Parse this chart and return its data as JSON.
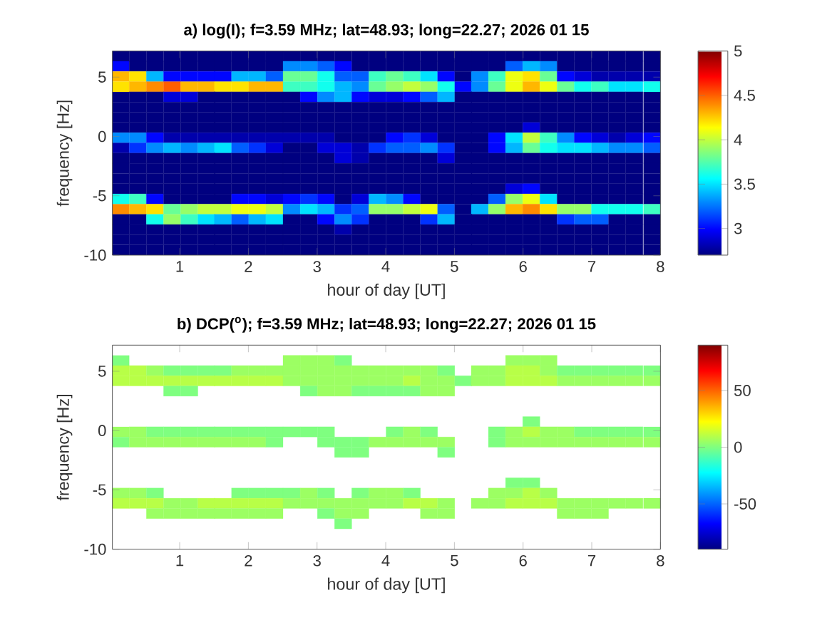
{
  "chart_data": [
    {
      "type": "scatter",
      "marker": "square",
      "title": "a) log(I); f=3.59 MHz;  lat=48.93; long=22.27; 2026 01 15",
      "xlabel": "hour of day [UT]",
      "ylabel": "frequency [Hz]",
      "xlim": [
        0.02,
        8
      ],
      "xticks": [
        1,
        2,
        3,
        4,
        5,
        6,
        7,
        8
      ],
      "ylim": [
        -10,
        7.2
      ],
      "yticks": [
        -10,
        -5,
        0,
        5
      ],
      "clim": [
        2.7,
        5
      ],
      "cticks": [
        3,
        3.5,
        4,
        4.5,
        5
      ],
      "x": [
        0.14,
        0.39,
        0.64,
        0.89,
        1.14,
        1.39,
        1.63,
        1.88,
        2.13,
        2.38,
        2.63,
        2.88,
        3.13,
        3.38,
        3.63,
        3.88,
        4.13,
        4.38,
        4.63,
        4.88,
        5.13,
        5.37,
        5.62,
        5.87,
        6.12,
        6.37,
        6.62,
        6.87,
        7.12,
        7.37,
        7.62,
        7.88,
        0.14,
        0.39,
        0.64,
        0.89,
        1.14,
        1.39,
        1.63,
        1.88,
        2.13,
        2.38,
        2.63,
        2.88,
        3.13,
        3.38,
        3.63,
        3.88,
        4.13,
        4.38,
        4.63,
        4.88,
        5.13,
        5.37,
        5.62,
        5.87,
        6.12,
        6.37,
        6.62,
        6.87,
        7.12,
        7.37,
        7.62,
        7.88,
        0.14,
        0.39,
        0.64,
        0.89,
        1.14,
        1.39,
        1.63,
        1.88,
        2.13,
        2.38,
        2.63,
        2.88,
        3.13,
        3.38,
        3.63,
        3.88,
        4.13,
        4.38,
        4.63,
        4.88,
        5.13,
        5.37,
        5.62,
        5.87,
        6.12,
        6.37,
        6.62,
        6.87,
        7.12,
        7.37,
        7.62,
        7.88,
        0.14,
        0.39,
        0.64,
        0.89,
        1.14,
        1.39,
        1.63,
        1.88,
        2.13,
        2.38,
        2.63,
        2.88,
        3.13,
        3.38,
        3.63,
        3.88,
        4.13,
        4.38,
        4.63,
        4.88,
        5.13,
        5.37,
        5.62,
        5.87,
        6.12,
        6.37,
        6.62,
        6.87,
        7.12,
        7.37,
        7.62,
        7.88,
        0.14,
        0.39,
        0.64,
        0.89,
        1.14,
        1.39,
        1.63,
        1.88,
        2.13,
        2.38,
        2.63,
        2.88,
        3.13,
        3.38,
        3.63,
        3.88,
        4.13,
        4.38,
        4.63,
        4.88,
        5.13,
        5.37,
        5.62,
        5.87,
        6.12,
        6.37,
        6.62,
        6.87,
        7.12,
        7.37,
        7.62,
        7.88,
        0.14,
        0.39,
        0.64,
        0.89,
        1.14,
        1.39,
        1.63,
        1.88,
        2.13,
        2.38,
        2.63,
        2.88,
        3.13,
        3.38,
        3.63,
        3.88,
        4.13,
        4.38,
        4.63,
        4.88,
        5.13,
        5.37,
        5.62,
        5.87,
        6.12,
        6.37,
        6.62,
        6.87,
        7.12,
        7.37,
        7.62,
        7.88,
        0.14,
        0.39,
        0.64,
        0.89,
        1.14,
        1.39,
        1.63,
        1.88,
        2.13,
        2.38,
        2.63,
        2.88,
        3.13,
        3.38,
        3.63,
        3.88,
        4.13,
        4.38,
        4.63,
        4.88,
        5.13,
        5.37,
        5.62,
        5.87,
        6.12,
        6.37,
        6.62,
        6.87,
        7.12,
        7.37,
        7.62,
        7.88,
        0.14,
        0.39,
        0.64,
        0.89,
        1.14,
        1.39,
        1.63,
        1.88,
        2.13,
        2.38,
        2.63,
        2.88,
        3.13,
        3.38,
        3.63,
        3.88,
        4.13,
        4.38,
        4.63,
        4.88,
        5.13,
        5.37,
        5.62,
        5.87,
        6.12,
        6.37,
        6.62,
        6.87,
        7.12,
        7.37,
        7.62,
        7.88,
        0.14,
        0.39,
        0.64,
        0.89,
        1.14,
        1.39,
        1.63,
        1.88,
        2.13,
        2.38,
        2.63,
        2.88,
        3.13,
        3.38,
        3.63,
        3.88,
        4.13,
        4.38,
        4.63,
        4.88,
        5.13,
        5.37,
        5.62,
        5.87,
        6.12,
        6.37,
        6.62,
        6.87,
        7.12,
        7.37,
        7.62,
        7.88,
        0.14,
        0.39,
        0.64,
        0.89,
        1.14,
        1.39,
        1.63,
        1.88,
        2.13,
        2.38,
        2.63,
        2.88,
        3.13,
        3.38,
        3.63,
        3.88,
        4.13,
        4.38,
        4.63,
        4.88,
        5.13,
        5.37,
        5.62,
        5.87,
        6.12,
        6.37,
        6.62,
        6.87,
        7.12,
        7.37,
        7.62,
        7.88,
        0.14,
        0.39,
        0.64,
        0.89,
        1.14,
        1.39,
        1.63,
        1.88,
        2.13,
        2.38,
        2.63,
        2.88,
        3.13,
        3.38,
        3.63,
        3.88,
        4.13,
        4.38,
        4.63,
        4.88,
        5.13,
        5.37,
        5.62,
        5.87,
        6.12,
        6.37,
        6.62,
        6.87,
        7.12,
        7.37,
        7.62,
        7.88,
        0.14,
        0.39,
        0.64,
        0.89,
        1.14,
        1.39,
        1.63,
        1.88,
        2.13,
        2.38,
        2.63,
        2.88,
        3.13,
        3.38,
        3.63,
        3.88,
        4.13,
        4.38,
        4.63,
        4.88,
        5.13,
        5.37,
        5.62,
        5.87,
        6.12,
        6.37,
        6.62,
        6.87,
        7.12,
        7.37,
        7.62,
        7.88,
        0.14,
        0.39,
        0.64,
        0.89,
        1.14,
        1.39,
        1.63,
        1.88,
        2.13,
        2.38,
        2.63,
        2.88,
        3.13,
        3.38,
        3.63,
        3.88,
        4.13,
        4.38,
        4.63,
        4.88,
        5.13,
        5.37,
        5.62,
        5.87,
        6.12,
        6.37,
        6.62,
        6.87,
        7.12,
        7.37,
        7.62,
        7.88,
        0.14,
        0.39,
        0.64,
        0.89,
        1.14,
        1.39,
        1.63,
        1.88,
        2.13,
        2.38,
        2.63,
        2.88,
        3.13,
        3.38,
        3.63,
        3.88,
        4.13,
        4.38,
        4.63,
        4.88,
        5.13,
        5.37,
        5.62,
        5.87,
        6.12,
        6.37,
        6.62,
        6.87,
        7.12,
        7.37,
        7.62,
        7.88,
        0.14,
        0.39,
        0.64,
        0.89,
        1.14,
        1.39,
        1.63,
        1.88,
        2.13,
        2.38,
        2.63,
        2.88,
        3.13,
        3.38,
        3.63,
        3.88,
        4.13,
        4.38,
        4.63,
        4.88,
        5.13,
        5.37,
        5.62,
        5.87,
        6.12,
        6.37,
        6.62,
        6.87,
        7.12,
        7.37,
        7.62,
        7.88,
        0.14,
        0.39,
        0.64,
        0.89,
        1.14,
        1.39,
        1.63,
        1.88,
        2.13,
        2.38,
        2.63,
        2.88,
        3.13,
        3.38,
        3.63,
        3.88,
        4.13,
        4.38,
        4.63,
        4.88,
        5.13,
        5.37,
        5.62,
        5.87,
        6.12,
        6.37,
        6.62,
        6.87,
        7.12,
        7.37,
        7.62,
        7.88,
        0.14,
        0.39,
        0.64,
        0.89,
        1.14,
        1.39,
        1.63,
        1.88,
        2.13,
        2.38,
        2.63,
        2.88,
        3.13,
        3.38,
        3.63,
        3.88,
        4.13,
        4.38,
        4.63,
        4.88,
        5.13,
        5.37,
        5.62,
        5.87,
        6.12,
        6.37,
        6.62,
        6.87,
        7.12,
        7.37,
        7.62,
        7.88,
        0.14,
        0.39,
        0.64,
        0.89,
        1.14,
        1.39,
        1.63,
        1.88,
        2.13,
        2.38,
        2.63,
        2.88,
        3.13,
        3.38,
        3.63,
        3.88,
        4.13,
        4.38,
        4.63,
        4.88,
        5.13,
        5.37,
        5.62,
        5.87,
        6.12,
        6.37,
        6.62,
        6.87,
        7.12,
        7.37,
        7.62,
        7.88,
        0.14,
        0.39,
        0.64,
        0.89,
        1.14,
        1.39,
        1.63,
        1.88,
        2.13,
        2.38,
        2.63,
        2.88,
        3.13,
        3.38,
        3.63,
        3.88,
        4.13,
        4.38,
        4.63,
        4.88,
        5.13,
        5.37,
        5.62,
        5.87,
        6.12,
        6.37,
        6.62,
        6.87,
        7.12,
        7.37,
        7.62,
        7.88,
        0.14,
        0.39,
        0.64,
        0.89,
        1.14,
        1.39,
        1.63,
        1.88,
        2.13,
        2.38,
        2.63,
        2.88,
        3.13,
        3.38,
        3.63,
        3.88,
        4.13,
        4.38,
        4.63,
        4.88,
        5.13,
        5.37,
        5.62,
        5.87,
        6.12,
        6.37,
        6.62,
        6.87,
        7.12,
        7.37,
        7.62,
        7.88
      ],
      "values": [
        6.77,
        6.77,
        6.77,
        6.77,
        6.77,
        6.77,
        6.77,
        6.77,
        6.77,
        6.77,
        6.77,
        6.77,
        6.77,
        6.77,
        6.77,
        6.77,
        6.77,
        6.77,
        6.77,
        6.77,
        6.77,
        6.77,
        6.77,
        6.77,
        6.77,
        6.77,
        6.77,
        6.77,
        6.77,
        6.77,
        6.77,
        6.77,
        5.91,
        5.91,
        5.91,
        5.91,
        5.91,
        5.91,
        5.91,
        5.91,
        5.91,
        5.91,
        5.91,
        5.91,
        5.91,
        5.91,
        5.91,
        5.91,
        5.91,
        5.91,
        5.91,
        5.91,
        5.91,
        5.91,
        5.91,
        5.91,
        5.91,
        5.91,
        5.91,
        5.91,
        5.91,
        5.91,
        5.91,
        5.91,
        5.05,
        5.05,
        5.05,
        5.05,
        5.05,
        5.05,
        5.05,
        5.05,
        5.05,
        5.05,
        5.05,
        5.05,
        5.05,
        5.05,
        5.05,
        5.05,
        5.05,
        5.05,
        5.05,
        5.05,
        5.05,
        5.05,
        5.05,
        5.05,
        5.05,
        5.05,
        5.05,
        5.05,
        5.05,
        5.05,
        5.05,
        5.05,
        4.19,
        4.19,
        4.19,
        4.19,
        4.19,
        4.19,
        4.19,
        4.19,
        4.19,
        4.19,
        4.19,
        4.19,
        4.19,
        4.19,
        4.19,
        4.19,
        4.19,
        4.19,
        4.19,
        4.19,
        4.19,
        4.19,
        4.19,
        4.19,
        4.19,
        4.19,
        4.19,
        4.19,
        4.19,
        4.19,
        4.19,
        4.19,
        3.33,
        3.33,
        3.33,
        3.33,
        3.33,
        3.33,
        3.33,
        3.33,
        3.33,
        3.33,
        3.33,
        3.33,
        3.33,
        3.33,
        3.33,
        3.33,
        3.33,
        3.33,
        3.33,
        3.33,
        3.33,
        3.33,
        3.33,
        3.33,
        3.33,
        3.33,
        3.33,
        3.33,
        3.33,
        3.33,
        3.33,
        3.33,
        2.47,
        2.47,
        2.47,
        2.47,
        2.47,
        2.47,
        2.47,
        2.47,
        2.47,
        2.47,
        2.47,
        2.47,
        2.47,
        2.47,
        2.47,
        2.47,
        2.47,
        2.47,
        2.47,
        2.47,
        2.47,
        2.47,
        2.47,
        2.47,
        2.47,
        2.47,
        2.47,
        2.47,
        2.47,
        2.47,
        2.47,
        2.47,
        1.61,
        1.61,
        1.61,
        1.61,
        1.61,
        1.61,
        1.61,
        1.61,
        1.61,
        1.61,
        1.61,
        1.61,
        1.61,
        1.61,
        1.61,
        1.61,
        1.61,
        1.61,
        1.61,
        1.61,
        1.61,
        1.61,
        1.61,
        1.61,
        1.61,
        1.61,
        1.61,
        1.61,
        1.61,
        1.61,
        1.61,
        1.61,
        0.75,
        0.75,
        0.75,
        0.75,
        0.75,
        0.75,
        0.75,
        0.75,
        0.75,
        0.75,
        0.75,
        0.75,
        0.75,
        0.75,
        0.75,
        0.75,
        0.75,
        0.75,
        0.75,
        0.75,
        0.75,
        0.75,
        0.75,
        0.75,
        0.75,
        0.75,
        0.75,
        0.75,
        0.75,
        0.75,
        0.75,
        0.75,
        -0.11,
        -0.11,
        -0.11,
        -0.11,
        -0.11,
        -0.11,
        -0.11,
        -0.11,
        -0.11,
        -0.11,
        -0.11,
        -0.11,
        -0.11,
        -0.11,
        -0.11,
        -0.11,
        -0.11,
        -0.11,
        -0.11,
        -0.11,
        -0.11,
        -0.11,
        -0.11,
        -0.11,
        -0.11,
        -0.11,
        -0.11,
        -0.11,
        -0.11,
        -0.11,
        -0.11,
        -0.11,
        -0.97,
        -0.97,
        -0.97,
        -0.97,
        -0.97,
        -0.97,
        -0.97,
        -0.97,
        -0.97,
        -0.97,
        -0.97,
        -0.97,
        -0.97,
        -0.97,
        -0.97,
        -0.97,
        -0.97,
        -0.97,
        -0.97,
        -0.97,
        -0.97,
        -0.97,
        -0.97,
        -0.97,
        -0.97,
        -0.97,
        -0.97,
        -0.97,
        -0.97,
        -0.97,
        -0.97,
        -0.97,
        -1.83,
        -1.83,
        -1.83,
        -1.83,
        -1.83,
        -1.83,
        -1.83,
        -1.83,
        -1.83,
        -1.83,
        -1.83,
        -1.83,
        -1.83,
        -1.83,
        -1.83,
        -1.83,
        -1.83,
        -1.83,
        -1.83,
        -1.83,
        -1.83,
        -1.83,
        -1.83,
        -1.83,
        -1.83,
        -1.83,
        -1.83,
        -1.83,
        -1.83,
        -1.83,
        -1.83,
        -1.83,
        -2.69,
        -2.69,
        -2.69,
        -2.69,
        -2.69,
        -2.69,
        -2.69,
        -2.69,
        -2.69,
        -2.69,
        -2.69,
        -2.69,
        -2.69,
        -2.69,
        -2.69,
        -2.69,
        -2.69,
        -2.69,
        -2.69,
        -2.69,
        -2.69,
        -2.69,
        -2.69,
        -2.69,
        -2.69,
        -2.69,
        -2.69,
        -2.69,
        -2.69,
        -2.69,
        -2.69,
        -2.69,
        -3.55,
        -3.55,
        -3.55,
        -3.55,
        -3.55,
        -3.55,
        -3.55,
        -3.55,
        -3.55,
        -3.55,
        -3.55,
        -3.55,
        -3.55,
        -3.55,
        -3.55,
        -3.55,
        -3.55,
        -3.55,
        -3.55,
        -3.55,
        -3.55,
        -3.55,
        -3.55,
        -3.55,
        -3.55,
        -3.55,
        -3.55,
        -3.55,
        -3.55,
        -3.55,
        -3.55,
        -3.55,
        -4.41,
        -4.41,
        -4.41,
        -4.41,
        -4.41,
        -4.41,
        -4.41,
        -4.41,
        -4.41,
        -4.41,
        -4.41,
        -4.41,
        -4.41,
        -4.41,
        -4.41,
        -4.41,
        -4.41,
        -4.41,
        -4.41,
        -4.41,
        -4.41,
        -4.41,
        -4.41,
        -4.41,
        -4.41,
        -4.41,
        -4.41,
        -4.41,
        -4.41,
        -4.41,
        -4.41,
        -4.41,
        -5.27,
        -5.27,
        -5.27,
        -5.27,
        -5.27,
        -5.27,
        -5.27,
        -5.27,
        -5.27,
        -5.27,
        -5.27,
        -5.27,
        -5.27,
        -5.27,
        -5.27,
        -5.27,
        -5.27,
        -5.27,
        -5.27,
        -5.27,
        -5.27,
        -5.27,
        -5.27,
        -5.27,
        -5.27,
        -5.27,
        -5.27,
        -5.27,
        -5.27,
        -5.27,
        -5.27,
        -5.27,
        -6.13,
        -6.13,
        -6.13,
        -6.13,
        -6.13,
        -6.13,
        -6.13,
        -6.13,
        -6.13,
        -6.13,
        -6.13,
        -6.13,
        -6.13,
        -6.13,
        -6.13,
        -6.13,
        -6.13,
        -6.13,
        -6.13,
        -6.13,
        -6.13,
        -6.13,
        -6.13,
        -6.13,
        -6.13,
        -6.13,
        -6.13,
        -6.13,
        -6.13,
        -6.13,
        -6.13,
        -6.13,
        -6.99,
        -6.99,
        -6.99,
        -6.99,
        -6.99,
        -6.99,
        -6.99,
        -6.99,
        -6.99,
        -6.99,
        -6.99,
        -6.99,
        -6.99,
        -6.99,
        -6.99,
        -6.99,
        -6.99,
        -6.99,
        -6.99,
        -6.99,
        -6.99,
        -6.99,
        -6.99,
        -6.99,
        -6.99,
        -6.99,
        -6.99,
        -6.99,
        -6.99,
        -6.99,
        -6.99,
        -6.99,
        -7.85,
        -7.85,
        -7.85,
        -7.85,
        -7.85,
        -7.85,
        -7.85,
        -7.85,
        -7.85,
        -7.85,
        -7.85,
        -7.85,
        -7.85,
        -7.85,
        -7.85,
        -7.85,
        -7.85,
        -7.85,
        -7.85,
        -7.85,
        -7.85,
        -7.85,
        -7.85,
        -7.85,
        -7.85,
        -7.85,
        -7.85,
        -7.85,
        -7.85,
        -7.85,
        -7.85,
        -7.85,
        -8.71,
        -8.71,
        -8.71,
        -8.71,
        -8.71,
        -8.71,
        -8.71,
        -8.71,
        -8.71,
        -8.71,
        -8.71,
        -8.71,
        -8.71,
        -8.71,
        -8.71,
        -8.71,
        -8.71,
        -8.71,
        -8.71,
        -8.71,
        -8.71,
        -8.71,
        -8.71,
        -8.71,
        -8.71,
        -8.71,
        -8.71,
        -8.71,
        -8.71,
        -8.71,
        -8.71,
        -8.71,
        -9.57,
        -9.57,
        -9.57,
        -9.57,
        -9.57,
        -9.57,
        -9.57,
        -9.57,
        -9.57,
        -9.57,
        -9.57,
        -9.57,
        -9.57,
        -9.57,
        -9.57,
        -9.57,
        -9.57,
        -9.57,
        -9.57,
        -9.57,
        -9.57,
        -9.57,
        -9.57,
        -9.57,
        -9.57,
        -9.57,
        -9.57,
        -9.57,
        -9.57,
        -9.57,
        -9.57,
        -9.57
      ],
      "cvalues": [
        2.7,
        2.7,
        2.7,
        2.7,
        2.7,
        2.7,
        2.7,
        2.7,
        2.7,
        2.7,
        2.7,
        2.7,
        2.7,
        2.7,
        2.7,
        2.7,
        2.7,
        2.7,
        2.7,
        2.7,
        2.7,
        2.7,
        2.7,
        2.7,
        2.7,
        2.7,
        2.7,
        2.7,
        2.7,
        2.7,
        2.7,
        2.7,
        3.0,
        2.7,
        2.7,
        2.7,
        2.7,
        2.7,
        2.7,
        2.7,
        2.7,
        2.7,
        3.3,
        3.3,
        3.2,
        3.0,
        2.7,
        2.7,
        2.7,
        2.7,
        2.7,
        2.7,
        2.7,
        2.7,
        2.7,
        3.2,
        3.4,
        3.3,
        2.7,
        2.7,
        2.7,
        2.7,
        2.7,
        2.7,
        4.3,
        4.2,
        3.4,
        3.0,
        3.0,
        3.0,
        3.0,
        3.4,
        3.4,
        3.2,
        3.8,
        3.8,
        3.6,
        3.2,
        3.2,
        3.7,
        3.8,
        3.7,
        3.5,
        3.0,
        2.7,
        3.3,
        3.7,
        4.1,
        4.2,
        3.8,
        3.0,
        2.9,
        2.8,
        2.8,
        2.8,
        2.8,
        4.2,
        4.3,
        4.4,
        4.5,
        4.3,
        4.3,
        4.2,
        4.2,
        4.3,
        4.3,
        3.7,
        3.7,
        3.6,
        3.4,
        3.3,
        3.8,
        3.9,
        4.0,
        3.9,
        3.6,
        3.0,
        3.3,
        3.8,
        4.1,
        4.3,
        4.1,
        3.8,
        3.6,
        3.7,
        3.5,
        3.5,
        3.6,
        2.7,
        2.7,
        2.7,
        2.9,
        2.9,
        2.7,
        2.7,
        2.7,
        2.7,
        2.7,
        2.7,
        3.0,
        3.3,
        3.4,
        3.0,
        2.9,
        2.9,
        3.0,
        3.2,
        3.4,
        2.7,
        2.7,
        2.7,
        2.7,
        2.7,
        2.7,
        2.7,
        2.7,
        2.7,
        2.7,
        2.7,
        2.7,
        2.7,
        2.7,
        2.7,
        2.7,
        2.7,
        2.7,
        2.7,
        2.7,
        2.7,
        2.7,
        2.7,
        2.7,
        2.7,
        2.7,
        2.7,
        2.7,
        2.7,
        2.7,
        2.7,
        2.7,
        2.7,
        2.7,
        2.7,
        2.7,
        2.7,
        2.7,
        2.7,
        2.7,
        2.7,
        2.7,
        2.7,
        2.7,
        2.7,
        2.7,
        2.7,
        2.7,
        2.7,
        2.7,
        2.7,
        2.7,
        2.7,
        2.7,
        2.7,
        2.7,
        2.7,
        2.7,
        2.7,
        2.7,
        2.7,
        2.7,
        2.7,
        2.7,
        2.7,
        2.7,
        2.7,
        2.7,
        2.7,
        2.7,
        2.7,
        2.7,
        2.7,
        2.7,
        2.7,
        2.7,
        2.7,
        2.7,
        2.7,
        2.7,
        2.7,
        2.7,
        2.7,
        2.7,
        2.7,
        2.7,
        2.7,
        2.7,
        2.7,
        2.7,
        2.7,
        2.7,
        2.7,
        2.7,
        2.7,
        2.7,
        2.7,
        2.7,
        2.7,
        2.7,
        2.9,
        2.7,
        2.7,
        2.7,
        2.7,
        2.7,
        2.7,
        2.7,
        3.3,
        3.3,
        3.0,
        2.8,
        2.8,
        2.8,
        2.8,
        2.8,
        2.8,
        2.8,
        2.8,
        2.8,
        2.8,
        2.7,
        2.7,
        2.7,
        3.0,
        3.1,
        2.9,
        2.7,
        2.7,
        2.7,
        3.0,
        3.5,
        4.0,
        3.7,
        3.3,
        3.0,
        2.9,
        2.8,
        2.9,
        3.0,
        2.8,
        3.1,
        3.3,
        3.4,
        3.3,
        3.4,
        3.5,
        3.2,
        3.1,
        2.9,
        2.7,
        2.7,
        2.9,
        2.9,
        2.8,
        3.1,
        3.2,
        3.2,
        3.3,
        3.1,
        2.7,
        2.7,
        3.0,
        3.4,
        3.8,
        3.6,
        3.5,
        3.5,
        3.4,
        3.3,
        3.3,
        3.2,
        2.7,
        2.7,
        2.7,
        2.7,
        2.7,
        2.7,
        2.7,
        2.7,
        2.7,
        2.7,
        2.7,
        2.7,
        2.7,
        2.9,
        2.8,
        2.7,
        2.7,
        2.7,
        2.7,
        2.9,
        2.7,
        2.7,
        2.7,
        2.7,
        2.7,
        2.7,
        2.7,
        2.7,
        2.7,
        2.7,
        2.7,
        2.7,
        2.7,
        2.7,
        2.7,
        2.7,
        2.7,
        2.7,
        2.7,
        2.7,
        2.7,
        2.7,
        2.7,
        2.7,
        2.7,
        2.7,
        2.7,
        2.7,
        2.7,
        2.7,
        2.7,
        2.7,
        2.7,
        2.7,
        2.7,
        2.7,
        2.7,
        2.7,
        2.7,
        2.7,
        2.7,
        2.7,
        2.7,
        2.7,
        2.7,
        2.7,
        2.7,
        2.7,
        2.7,
        2.7,
        2.7,
        2.7,
        2.7,
        2.7,
        2.7,
        2.7,
        2.7,
        2.7,
        2.7,
        2.7,
        2.7,
        2.7,
        2.7,
        2.7,
        2.7,
        2.7,
        2.7,
        2.7,
        2.7,
        2.7,
        2.7,
        2.7,
        2.7,
        2.7,
        2.7,
        2.7,
        2.7,
        2.7,
        2.7,
        2.7,
        2.7,
        2.7,
        2.7,
        2.7,
        2.7,
        2.7,
        2.7,
        2.7,
        2.7,
        2.7,
        2.7,
        2.7,
        2.7,
        2.7,
        2.7,
        2.7,
        2.7,
        2.7,
        2.7,
        2.9,
        3.0,
        2.7,
        2.7,
        2.7,
        2.7,
        2.7,
        2.7,
        2.7,
        3.6,
        3.7,
        3.0,
        2.7,
        2.7,
        2.7,
        2.7,
        3.0,
        3.0,
        2.9,
        3.0,
        3.1,
        3.0,
        2.7,
        2.9,
        3.4,
        3.3,
        3.0,
        2.7,
        2.7,
        2.7,
        2.7,
        3.2,
        3.9,
        4.1,
        3.5,
        2.7,
        2.7,
        2.7,
        2.7,
        2.7,
        2.7,
        4.4,
        4.3,
        4.2,
        3.8,
        3.9,
        4.0,
        4.0,
        4.1,
        4.1,
        4.0,
        3.3,
        3.5,
        3.4,
        3.1,
        3.2,
        3.9,
        3.9,
        4.0,
        4.1,
        3.2,
        2.7,
        3.4,
        3.9,
        4.3,
        4.4,
        4.2,
        3.9,
        3.9,
        3.6,
        3.6,
        3.6,
        3.7,
        2.7,
        2.7,
        3.6,
        3.9,
        3.7,
        3.5,
        3.4,
        3.2,
        3.4,
        3.5,
        2.7,
        2.7,
        3.0,
        3.3,
        3.1,
        2.7,
        2.7,
        2.7,
        3.1,
        3.4,
        2.7,
        2.7,
        2.7,
        2.7,
        2.7,
        2.7,
        3.1,
        3.2,
        3.2,
        2.7,
        2.7,
        2.7,
        2.7,
        2.7,
        2.7,
        2.7,
        2.7,
        2.7,
        2.7,
        2.7,
        2.7,
        2.7,
        2.7,
        2.7,
        2.7,
        2.8,
        2.7,
        2.7,
        2.7,
        2.7,
        2.7,
        2.7,
        2.7,
        2.7,
        2.7,
        2.7,
        2.7,
        2.7,
        2.7,
        2.7,
        2.7,
        2.7,
        2.7,
        2.7,
        2.7,
        2.7,
        2.7,
        2.7,
        2.7,
        2.7,
        2.7,
        2.7,
        2.7,
        2.7,
        2.7,
        2.7,
        2.7,
        2.7,
        2.7,
        2.7,
        2.7,
        2.7,
        2.7,
        2.7,
        2.7,
        2.7,
        2.7,
        2.7,
        2.7,
        2.7,
        2.7,
        2.7,
        2.7,
        2.7,
        2.7,
        2.7,
        2.7,
        2.7,
        2.7,
        2.7,
        2.7,
        2.7,
        2.7,
        2.7,
        2.7,
        2.7,
        2.7,
        2.7,
        2.7,
        2.7,
        2.7,
        2.7,
        2.7,
        2.7,
        2.7,
        2.7,
        2.7,
        2.7,
        2.7,
        2.7,
        2.7,
        2.7,
        2.7,
        2.7,
        2.7,
        2.7,
        2.7,
        2.7
      ]
    },
    {
      "type": "scatter",
      "marker": "square",
      "title": "b) DCP($^{o}$); f=3.59 MHz;  lat=48.93; long=22.27; 2026 01 15",
      "xlabel": "hour of day [UT]",
      "ylabel": "frequency [Hz]",
      "xlim": [
        0.02,
        8
      ],
      "xticks": [
        1,
        2,
        3,
        4,
        5,
        6,
        7,
        8
      ],
      "ylim": [
        -10,
        7.2
      ],
      "yticks": [
        -10,
        -5,
        0,
        5
      ],
      "clim": [
        -90,
        90
      ],
      "cticks": [
        -50,
        0,
        50
      ],
      "x": [
        0.14,
        2.63,
        2.88,
        3.13,
        3.38,
        5.87,
        6.12,
        6.37,
        0.14,
        0.39,
        0.64,
        0.89,
        1.14,
        1.39,
        1.63,
        1.88,
        2.13,
        2.38,
        2.63,
        2.88,
        3.13,
        3.38,
        3.63,
        3.88,
        4.13,
        4.38,
        4.63,
        4.88,
        5.37,
        5.62,
        5.87,
        6.12,
        6.37,
        6.62,
        6.87,
        7.12,
        7.37,
        7.62,
        7.88,
        0.14,
        0.39,
        0.64,
        0.89,
        1.14,
        1.39,
        1.63,
        1.88,
        2.13,
        2.38,
        2.63,
        2.88,
        3.13,
        3.38,
        3.63,
        3.88,
        4.13,
        4.38,
        4.63,
        4.88,
        5.13,
        5.37,
        5.62,
        5.87,
        6.12,
        6.37,
        6.62,
        6.87,
        7.12,
        7.37,
        7.62,
        7.88,
        0.89,
        1.14,
        2.88,
        3.13,
        3.38,
        3.63,
        3.88,
        4.13,
        4.38,
        4.63,
        4.88,
        6.12,
        0.14,
        0.39,
        0.64,
        0.89,
        1.14,
        1.39,
        1.63,
        1.88,
        2.13,
        2.38,
        2.63,
        2.88,
        3.13,
        4.13,
        4.38,
        4.63,
        5.62,
        5.87,
        6.12,
        6.37,
        6.62,
        6.87,
        7.12,
        7.37,
        7.62,
        7.88,
        0.14,
        0.39,
        0.64,
        0.89,
        1.14,
        1.39,
        1.63,
        1.88,
        2.13,
        2.38,
        3.13,
        3.38,
        3.63,
        3.88,
        4.13,
        4.38,
        4.63,
        4.88,
        5.62,
        5.87,
        6.12,
        6.37,
        6.62,
        6.87,
        7.12,
        7.37,
        7.62,
        7.88,
        3.38,
        3.63,
        4.88,
        5.87,
        6.12,
        0.14,
        0.39,
        0.64,
        1.88,
        2.13,
        2.38,
        2.63,
        2.88,
        3.13,
        3.63,
        3.88,
        4.13,
        4.38,
        5.62,
        5.87,
        6.12,
        6.37,
        0.14,
        0.39,
        0.64,
        0.89,
        1.14,
        1.39,
        1.63,
        1.88,
        2.13,
        2.38,
        2.63,
        2.88,
        3.13,
        3.38,
        3.63,
        3.88,
        4.13,
        4.38,
        4.63,
        4.88,
        5.37,
        5.62,
        5.87,
        6.12,
        6.37,
        6.62,
        6.87,
        7.12,
        7.37,
        7.62,
        7.88,
        0.64,
        0.89,
        1.14,
        1.39,
        1.63,
        1.88,
        2.13,
        2.38,
        3.13,
        3.38,
        3.63,
        4.63,
        4.88,
        6.62,
        6.87,
        7.12,
        3.38
      ],
      "values": [
        5.91,
        5.91,
        5.91,
        5.91,
        5.91,
        5.91,
        5.91,
        5.91,
        5.05,
        5.05,
        5.05,
        5.05,
        5.05,
        5.05,
        5.05,
        5.05,
        5.05,
        5.05,
        5.05,
        5.05,
        5.05,
        5.05,
        5.05,
        5.05,
        5.05,
        5.05,
        5.05,
        5.05,
        5.05,
        5.05,
        5.05,
        5.05,
        5.05,
        5.05,
        5.05,
        5.05,
        5.05,
        5.05,
        5.05,
        4.19,
        4.19,
        4.19,
        4.19,
        4.19,
        4.19,
        4.19,
        4.19,
        4.19,
        4.19,
        4.19,
        4.19,
        4.19,
        4.19,
        4.19,
        4.19,
        4.19,
        4.19,
        4.19,
        4.19,
        4.19,
        4.19,
        4.19,
        4.19,
        4.19,
        4.19,
        4.19,
        4.19,
        4.19,
        4.19,
        4.19,
        4.19,
        3.33,
        3.33,
        3.33,
        3.33,
        3.33,
        3.33,
        3.33,
        3.33,
        3.33,
        3.33,
        3.33,
        0.75,
        -0.11,
        -0.11,
        -0.11,
        -0.11,
        -0.11,
        -0.11,
        -0.11,
        -0.11,
        -0.11,
        -0.11,
        -0.11,
        -0.11,
        -0.11,
        -0.11,
        -0.11,
        -0.11,
        -0.11,
        -0.11,
        -0.11,
        -0.11,
        -0.11,
        -0.11,
        -0.11,
        -0.11,
        -0.11,
        -0.11,
        -0.97,
        -0.97,
        -0.97,
        -0.97,
        -0.97,
        -0.97,
        -0.97,
        -0.97,
        -0.97,
        -0.97,
        -0.97,
        -0.97,
        -0.97,
        -0.97,
        -0.97,
        -0.97,
        -0.97,
        -0.97,
        -0.97,
        -0.97,
        -0.97,
        -0.97,
        -0.97,
        -0.97,
        -0.97,
        -0.97,
        -0.97,
        -0.97,
        -1.83,
        -1.83,
        -1.83,
        -4.41,
        -4.41,
        -5.27,
        -5.27,
        -5.27,
        -5.27,
        -5.27,
        -5.27,
        -5.27,
        -5.27,
        -5.27,
        -5.27,
        -5.27,
        -5.27,
        -5.27,
        -5.27,
        -5.27,
        -5.27,
        -5.27,
        -6.13,
        -6.13,
        -6.13,
        -6.13,
        -6.13,
        -6.13,
        -6.13,
        -6.13,
        -6.13,
        -6.13,
        -6.13,
        -6.13,
        -6.13,
        -6.13,
        -6.13,
        -6.13,
        -6.13,
        -6.13,
        -6.13,
        -6.13,
        -6.13,
        -6.13,
        -6.13,
        -6.13,
        -6.13,
        -6.13,
        -6.13,
        -6.13,
        -6.13,
        -6.13,
        -6.13,
        -6.99,
        -6.99,
        -6.99,
        -6.99,
        -6.99,
        -6.99,
        -6.99,
        -6.99,
        -6.99,
        -6.99,
        -6.99,
        -6.99,
        -6.99,
        -6.99,
        -6.99,
        -6.99,
        -7.85
      ],
      "cvalues": [
        0,
        5,
        5,
        5,
        0,
        5,
        5,
        5,
        10,
        10,
        5,
        0,
        0,
        0,
        0,
        5,
        5,
        5,
        5,
        5,
        5,
        5,
        5,
        5,
        5,
        5,
        5,
        0,
        5,
        5,
        10,
        10,
        5,
        0,
        0,
        0,
        0,
        0,
        0,
        10,
        10,
        10,
        10,
        10,
        10,
        10,
        10,
        10,
        10,
        5,
        5,
        5,
        5,
        5,
        5,
        5,
        10,
        5,
        5,
        0,
        5,
        5,
        10,
        10,
        10,
        5,
        5,
        5,
        5,
        5,
        5,
        0,
        0,
        0,
        5,
        5,
        0,
        0,
        0,
        0,
        5,
        5,
        0,
        5,
        5,
        0,
        0,
        0,
        0,
        0,
        0,
        0,
        0,
        0,
        0,
        0,
        0,
        5,
        0,
        0,
        5,
        10,
        5,
        5,
        0,
        0,
        0,
        0,
        0,
        0,
        5,
        5,
        5,
        5,
        5,
        5,
        5,
        5,
        0,
        0,
        0,
        0,
        5,
        5,
        5,
        5,
        5,
        0,
        5,
        5,
        5,
        5,
        5,
        5,
        5,
        5,
        5,
        0,
        0,
        0,
        0,
        0,
        5,
        5,
        0,
        0,
        0,
        0,
        0,
        5,
        0,
        0,
        5,
        5,
        0,
        5,
        5,
        10,
        5,
        10,
        10,
        10,
        5,
        5,
        10,
        10,
        10,
        10,
        10,
        5,
        5,
        5,
        5,
        5,
        5,
        5,
        10,
        10,
        5,
        5,
        5,
        10,
        10,
        10,
        5,
        5,
        5,
        5,
        5,
        5,
        5,
        5,
        5,
        5,
        5,
        5,
        5,
        5,
        0,
        5,
        5,
        5,
        5,
        5,
        5,
        5,
        0
      ]
    }
  ]
}
